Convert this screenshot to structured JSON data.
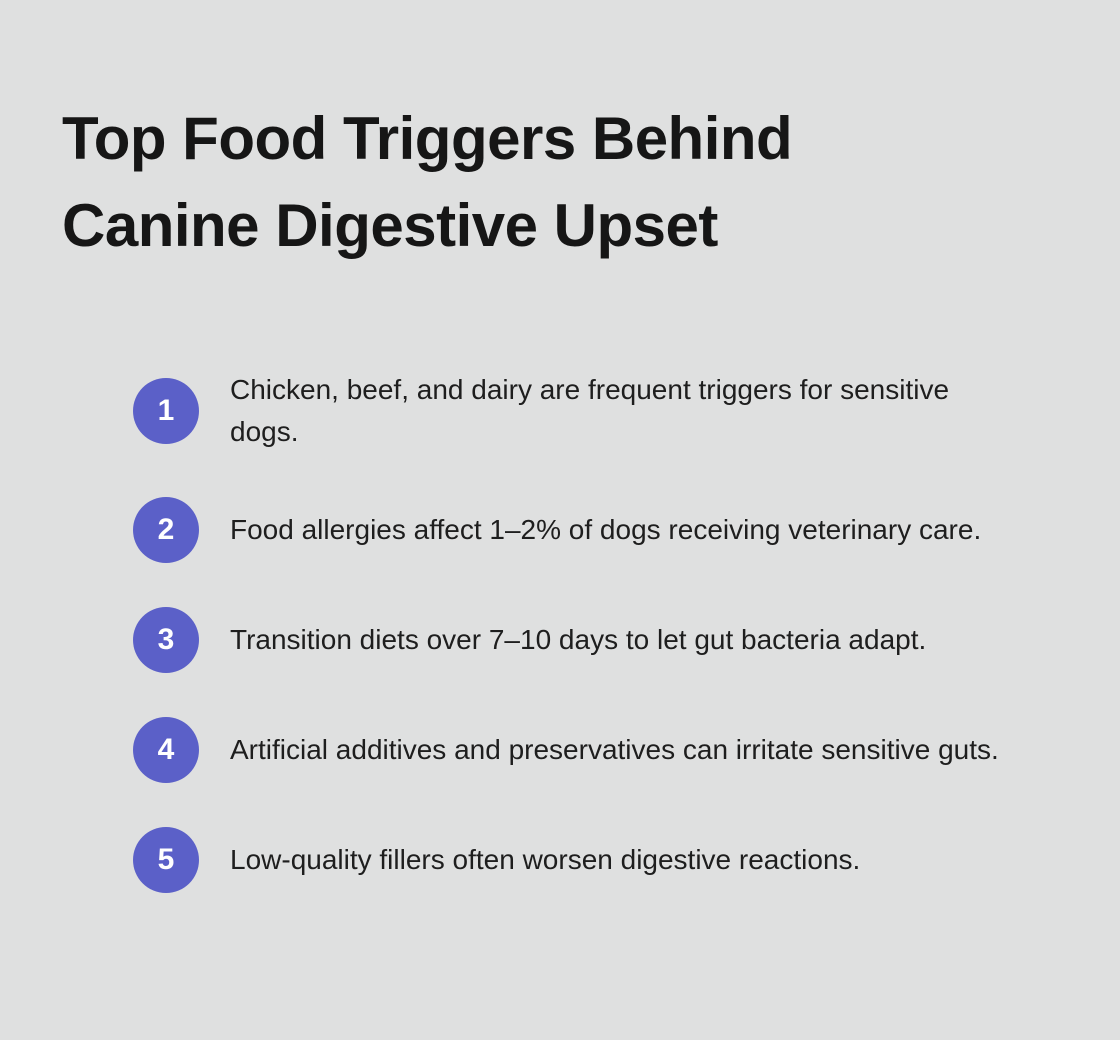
{
  "colors": {
    "background": "#dfe0e0",
    "accent": "#5b60c8",
    "title-text": "#161616",
    "body-text": "#1e1e1e"
  },
  "header": {
    "title": "Top Food Triggers Behind Canine Digestive Upset"
  },
  "list": {
    "items": [
      {
        "number": "1",
        "text": "Chicken, beef, and dairy are frequent triggers for sensitive dogs."
      },
      {
        "number": "2",
        "text": "Food allergies affect 1–2% of dogs receiving veterinary care."
      },
      {
        "number": "3",
        "text": "Transition diets over 7–10 days to let gut bacteria adapt."
      },
      {
        "number": "4",
        "text": "Artificial additives and preservatives can irritate sensitive guts."
      },
      {
        "number": "5",
        "text": "Low-quality fillers often worsen digestive reactions."
      }
    ]
  }
}
